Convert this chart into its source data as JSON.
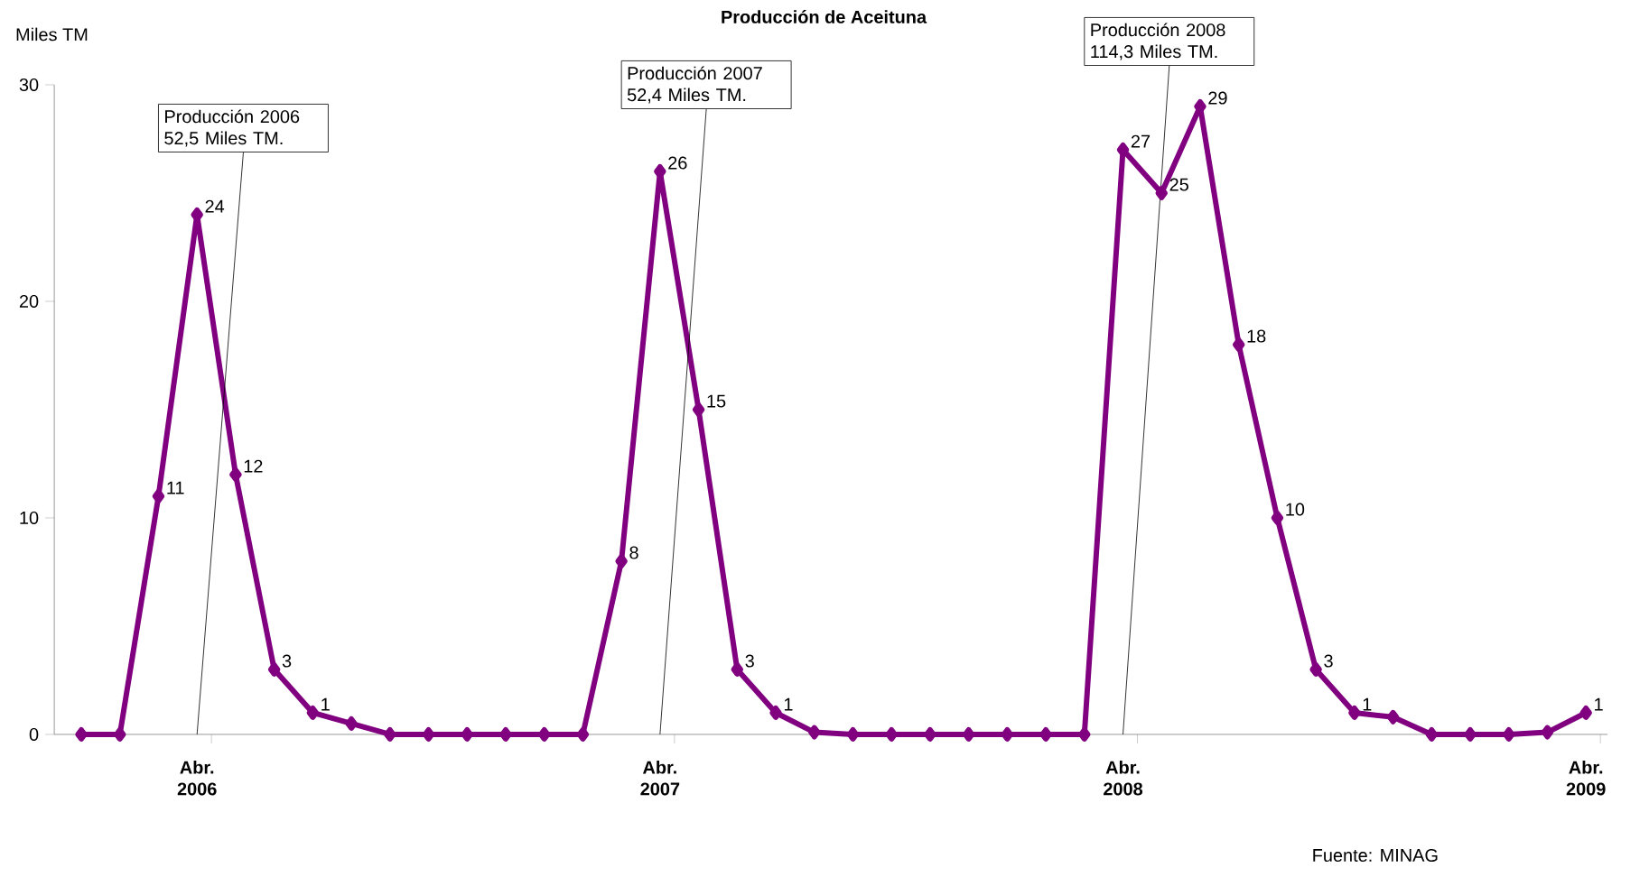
{
  "chart_data": {
    "type": "line",
    "title": "Producción de Aceituna",
    "ylabel": "Miles TM",
    "categories": [
      null,
      null,
      null,
      "Abr. 2006",
      null,
      null,
      null,
      null,
      null,
      null,
      null,
      null,
      null,
      null,
      null,
      "Abr. 2007",
      null,
      null,
      null,
      null,
      null,
      null,
      null,
      null,
      null,
      null,
      null,
      "Abr. 2008",
      null,
      null,
      null,
      null,
      null,
      null,
      null,
      null,
      null,
      null,
      null,
      "Abr. 2009"
    ],
    "series": [
      {
        "color": "#800080",
        "values": [
          0,
          0,
          11,
          24,
          12,
          3,
          1,
          0.5,
          0,
          0,
          0,
          0,
          0,
          0,
          8,
          26,
          15,
          3,
          1,
          0.1,
          0,
          0,
          0,
          0,
          0,
          0,
          0,
          27,
          25,
          29,
          18,
          10,
          3,
          1,
          0.8,
          0,
          0,
          0,
          0.1,
          1
        ],
        "value_labels": [
          null,
          null,
          "11",
          "24",
          "12",
          "3",
          "1",
          null,
          null,
          null,
          null,
          null,
          null,
          null,
          "8",
          "26",
          "15",
          "3",
          "1",
          null,
          null,
          null,
          null,
          null,
          null,
          null,
          null,
          "27",
          "25",
          "29",
          "18",
          "10",
          "3",
          "1",
          null,
          null,
          null,
          null,
          null,
          "1"
        ]
      }
    ],
    "ylim": [
      0,
      30
    ],
    "yticks": [
      0,
      10,
      20,
      30
    ],
    "grid": false,
    "marker": "diamond",
    "line_style": "solid",
    "annotations": [
      "Producción 2006 52,5 Miles TM.",
      "Producción 2007 52,4 Miles TM.",
      "Producción 2008 114,3 Miles TM.",
      "Fuente: MINAG"
    ]
  }
}
